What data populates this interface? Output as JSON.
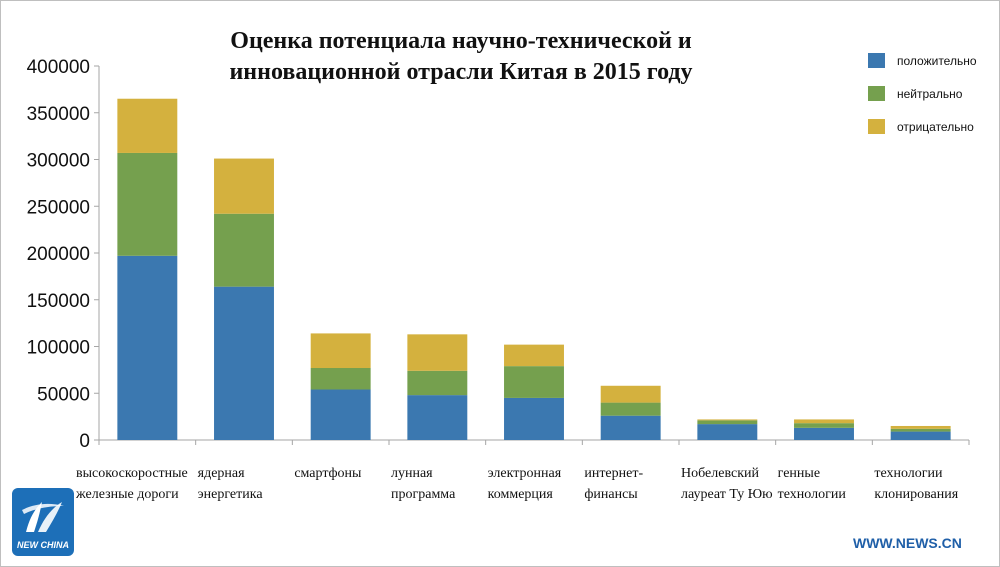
{
  "colors": {
    "positive": "#3B78B0",
    "neutral": "#75A04E",
    "negative": "#D4B13E",
    "axis": "#a6a6a6",
    "logo": "#1d6fb8",
    "url": "#1f5fa8"
  },
  "chart_data": {
    "type": "bar",
    "stacked": true,
    "title_lines": [
      "Оценка потенциала научно-технической и",
      "инновационной отрасли Китая в 2015 году"
    ],
    "categories": [
      [
        "высокоскоростные",
        "железные дороги"
      ],
      [
        "ядерная",
        "энергетика"
      ],
      [
        "смартфоны"
      ],
      [
        "лунная",
        "программа"
      ],
      [
        "электронная",
        "коммерция"
      ],
      [
        "интернет-",
        "финансы"
      ],
      [
        "Нобелевский",
        "лауреат Ту Юю"
      ],
      [
        "генные",
        "технологии"
      ],
      [
        "технологии",
        "клонирования"
      ]
    ],
    "series": [
      {
        "name": "положительно",
        "color": "#3B78B0",
        "values": [
          197000,
          164000,
          54000,
          48000,
          45000,
          26000,
          17000,
          13000,
          9000
        ]
      },
      {
        "name": "нейтрально",
        "color": "#75A04E",
        "values": [
          110000,
          78000,
          23000,
          26000,
          34000,
          14000,
          4000,
          5000,
          3000
        ]
      },
      {
        "name": "отрицательно",
        "color": "#D4B13E",
        "values": [
          58000,
          59000,
          37000,
          39000,
          23000,
          18000,
          1000,
          4000,
          3000
        ]
      }
    ],
    "yticks": [
      "0",
      "50000",
      "100000",
      "150000",
      "200000",
      "250000",
      "300000",
      "350000",
      "400000"
    ],
    "ylim": [
      0,
      400000
    ],
    "grid": false,
    "legend_position": "top-right"
  },
  "watermark": {
    "logo_text": "NEW CHINA",
    "url": "WWW.NEWS.CN"
  }
}
